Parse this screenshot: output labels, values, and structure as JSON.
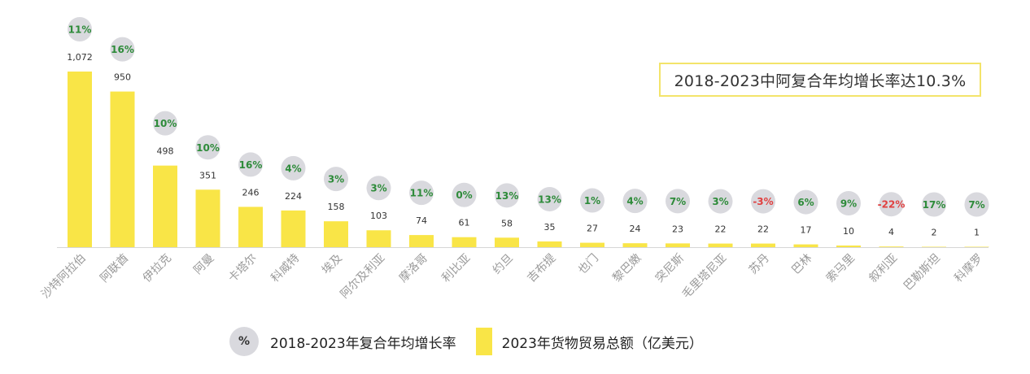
{
  "chart_data": {
    "type": "bar",
    "categories": [
      "沙特阿拉伯",
      "阿联酋",
      "伊拉克",
      "阿曼",
      "卡塔尔",
      "科威特",
      "埃及",
      "阿尔及利亚",
      "摩洛哥",
      "利比亚",
      "约旦",
      "吉布提",
      "也门",
      "黎巴嫩",
      "突尼斯",
      "毛里塔尼亚",
      "苏丹",
      "巴林",
      "索马里",
      "叙利亚",
      "巴勒斯坦",
      "科摩罗"
    ],
    "series": [
      {
        "name": "2023年货物贸易总额（亿美元）",
        "values": [
          1072,
          950,
          498,
          351,
          246,
          224,
          158,
          103,
          74,
          61,
          58,
          35,
          27,
          24,
          23,
          22,
          22,
          17,
          10,
          4,
          2,
          1
        ],
        "labels": [
          "1,072",
          "950",
          "498",
          "351",
          "246",
          "224",
          "158",
          "103",
          "74",
          "61",
          "58",
          "35",
          "27",
          "24",
          "23",
          "22",
          "22",
          "17",
          "10",
          "4",
          "2",
          "1"
        ],
        "color": "#f9e547"
      },
      {
        "name": "2018-2023年复合年均增长率",
        "values": [
          11,
          16,
          10,
          10,
          16,
          4,
          3,
          3,
          11,
          0,
          13,
          13,
          1,
          4,
          7,
          3,
          -3,
          6,
          9,
          -22,
          17,
          7
        ],
        "labels": [
          "11%",
          "16%",
          "10%",
          "10%",
          "16%",
          "4%",
          "3%",
          "3%",
          "11%",
          "0%",
          "13%",
          "13%",
          "1%",
          "4%",
          "7%",
          "3%",
          "-3%",
          "6%",
          "9%",
          "-22%",
          "17%",
          "7%"
        ],
        "color": "#d9d9de",
        "positive_text_color": "#2e8b3a",
        "negative_text_color": "#e04040"
      }
    ],
    "ylim": [
      0,
      1100
    ],
    "annotation": "2018-2023中阿复合年均增长率达10.3%",
    "legend": {
      "position": "bottom-center",
      "circle_symbol": "%",
      "items": [
        "2018-2023年复合年均增长率",
        "2023年货物贸易总额（亿美元）"
      ]
    },
    "grid": false
  }
}
